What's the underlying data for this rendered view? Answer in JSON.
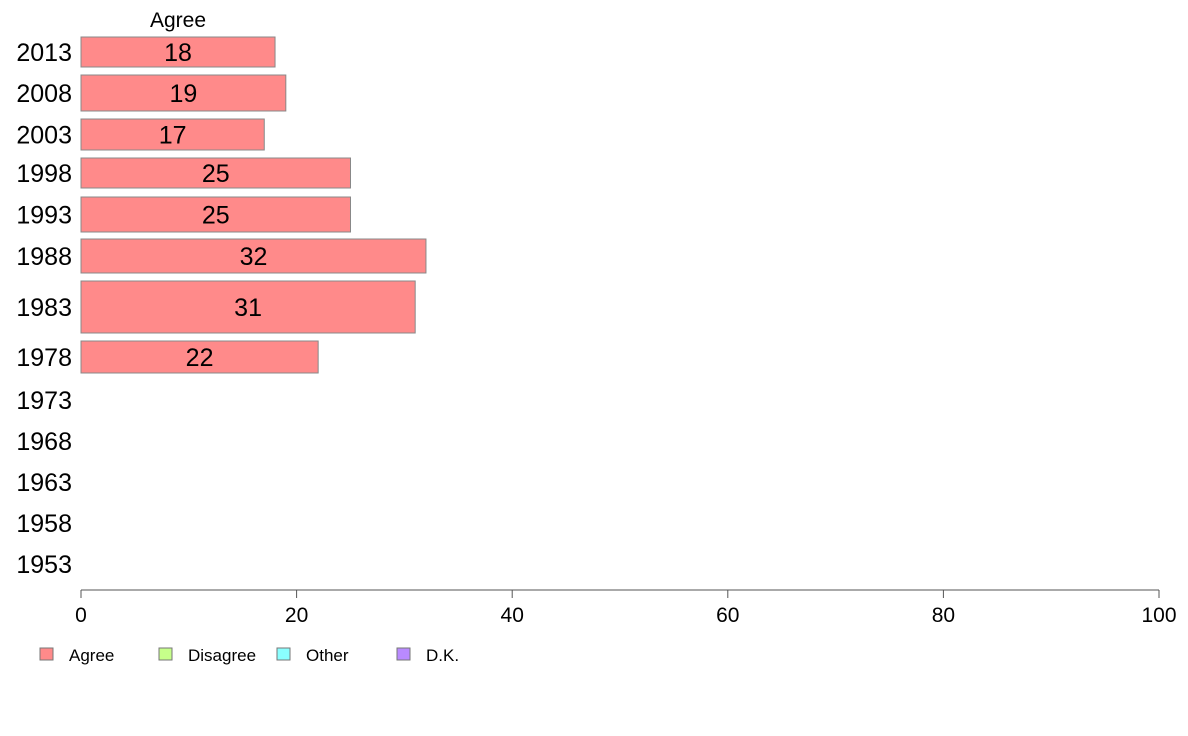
{
  "chart_data": {
    "type": "bar",
    "orientation": "horizontal",
    "stacked": true,
    "header": "Agree",
    "categories": [
      "2013",
      "2008",
      "2003",
      "1998",
      "1993",
      "1988",
      "1983",
      "1978",
      "1973",
      "1968",
      "1963",
      "1958",
      "1953"
    ],
    "series": [
      {
        "name": "Agree",
        "color": "#ff8a8a",
        "values": [
          18,
          19,
          17,
          25,
          25,
          32,
          31,
          22,
          null,
          null,
          null,
          null,
          null
        ]
      },
      {
        "name": "Disagree",
        "color": "#c6ff8a",
        "values": [
          null,
          null,
          null,
          null,
          null,
          null,
          null,
          null,
          null,
          null,
          null,
          null,
          null
        ]
      },
      {
        "name": "Other",
        "color": "#8affff",
        "values": [
          null,
          null,
          null,
          null,
          null,
          null,
          null,
          null,
          null,
          null,
          null,
          null,
          null
        ]
      },
      {
        "name": "D.K.",
        "color": "#b98aff",
        "values": [
          null,
          null,
          null,
          null,
          null,
          null,
          null,
          null,
          null,
          null,
          null,
          null,
          null
        ]
      }
    ],
    "xlim": [
      0,
      100
    ],
    "xticks": [
      "0",
      "20",
      "40",
      "60",
      "80",
      "100"
    ],
    "grid": false,
    "legend_position": "bottom-left"
  }
}
